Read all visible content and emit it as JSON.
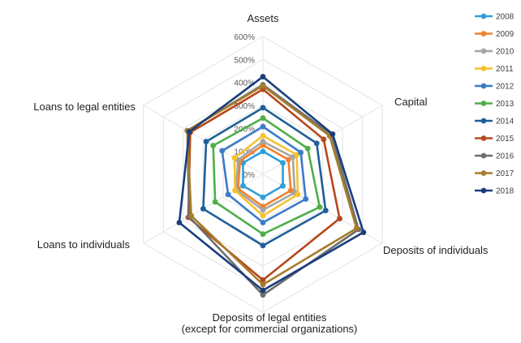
{
  "chart_data": {
    "type": "radar",
    "title": "",
    "axes": [
      "Assets",
      "Capital",
      "Deposits of individuals",
      "Deposits of legal entities\n(except for commercial organizations)",
      "Loans to individuals",
      "Loans to legal entities"
    ],
    "ticks": [
      "0%",
      "100%",
      "200%",
      "300%",
      "400%",
      "500%",
      "600%"
    ],
    "range": [
      0,
      600
    ],
    "legend_position": "right",
    "series": [
      {
        "name": "2008",
        "color": "#2E9FD8",
        "values": [
          100,
          100,
          100,
          100,
          100,
          100
        ]
      },
      {
        "name": "2009",
        "color": "#F0802F",
        "values": [
          127,
          128,
          140,
          140,
          125,
          115
        ]
      },
      {
        "name": "2010",
        "color": "#A5A5A5",
        "values": [
          143,
          150,
          160,
          155,
          135,
          125
        ]
      },
      {
        "name": "2011",
        "color": "#F5C12E",
        "values": [
          168,
          170,
          175,
          180,
          140,
          143
        ]
      },
      {
        "name": "2012",
        "color": "#3C7BC9",
        "values": [
          208,
          190,
          215,
          210,
          175,
          205
        ]
      },
      {
        "name": "2013",
        "color": "#4EAF49",
        "values": [
          245,
          225,
          285,
          260,
          240,
          250
        ]
      },
      {
        "name": "2014",
        "color": "#1F5E99",
        "values": [
          290,
          270,
          315,
          310,
          300,
          285
        ]
      },
      {
        "name": "2015",
        "color": "#B5481C",
        "values": [
          370,
          305,
          385,
          460,
          375,
          365
        ]
      },
      {
        "name": "2016",
        "color": "#6E6E6E",
        "values": [
          390,
          345,
          480,
          525,
          370,
          380
        ]
      },
      {
        "name": "2017",
        "color": "#A77C2B",
        "values": [
          385,
          335,
          470,
          480,
          360,
          380
        ]
      },
      {
        "name": "2018",
        "color": "#1A3E7D",
        "values": [
          425,
          350,
          505,
          505,
          420,
          370
        ]
      }
    ]
  }
}
